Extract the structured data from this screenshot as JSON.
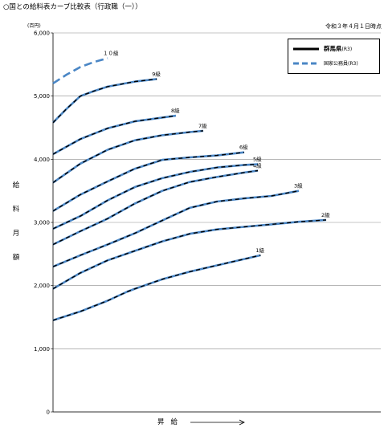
{
  "page": {
    "title": "○国との給料表カーブ比較表（行政職（一））",
    "date_note": "令和３年４月１日時点",
    "ylabel_chars": [
      "給",
      "料",
      "月",
      "額"
    ],
    "xlabel": "昇給"
  },
  "chart_data": {
    "type": "line",
    "title": "○国との給料表カーブ比較表（行政職（一））",
    "unit_label": "(百円)",
    "ylabel": "給料月額",
    "xlabel": "昇給",
    "ylim": [
      0,
      6000
    ],
    "yticks": [
      0,
      1000,
      2000,
      3000,
      4000,
      5000,
      6000
    ],
    "ytick_labels": [
      "0",
      "1,000",
      "2,000",
      "3,000",
      "4,000",
      "5,000",
      "6,000"
    ],
    "grid": true,
    "legend_position": "top-right",
    "legend": [
      {
        "name": "群馬県(R3)",
        "style": "solid",
        "color": "#000000"
      },
      {
        "name": "国家公務員(R3)",
        "style": "dashed",
        "color": "#4a86c5"
      }
    ],
    "colors": {
      "prefecture": "#000000",
      "national": "#4a86c5"
    },
    "x_unit": "号給 (approximate progression index 0-100)",
    "series": [
      {
        "name": "1級",
        "label": "1級",
        "x": [
          0,
          10,
          20,
          27,
          30,
          40,
          50,
          60,
          70,
          76
        ],
        "values": [
          1450,
          1590,
          1760,
          1900,
          1950,
          2100,
          2220,
          2320,
          2420,
          2480
        ]
      },
      {
        "name": "2級",
        "label": "2級",
        "x": [
          0,
          10,
          20,
          30,
          40,
          50,
          60,
          70,
          80,
          90,
          100
        ],
        "values": [
          1950,
          2200,
          2400,
          2550,
          2700,
          2820,
          2890,
          2930,
          2970,
          3010,
          3040
        ]
      },
      {
        "name": "3級",
        "label": "3級",
        "x": [
          0,
          10,
          20,
          30,
          40,
          50,
          60,
          70,
          80,
          90
        ],
        "values": [
          2300,
          2480,
          2650,
          2830,
          3030,
          3230,
          3330,
          3380,
          3420,
          3500
        ]
      },
      {
        "name": "4級",
        "label": "4級",
        "x": [
          0,
          10,
          20,
          30,
          40,
          50,
          60,
          70,
          75
        ],
        "values": [
          2650,
          2860,
          3060,
          3300,
          3500,
          3640,
          3720,
          3790,
          3820
        ]
      },
      {
        "name": "5級",
        "label": "5級",
        "x": [
          0,
          10,
          20,
          30,
          40,
          50,
          60,
          70,
          75
        ],
        "values": [
          2900,
          3100,
          3350,
          3560,
          3700,
          3800,
          3870,
          3910,
          3920
        ]
      },
      {
        "name": "6級",
        "label": "6級",
        "x": [
          0,
          10,
          20,
          30,
          40,
          50,
          60,
          70
        ],
        "values": [
          3180,
          3440,
          3650,
          3850,
          3990,
          4030,
          4060,
          4110
        ]
      },
      {
        "name": "7級",
        "label": "7級",
        "x": [
          0,
          10,
          20,
          30,
          40,
          50,
          55
        ],
        "values": [
          3630,
          3930,
          4150,
          4300,
          4380,
          4430,
          4450
        ]
      },
      {
        "name": "8級",
        "label": "8級",
        "x": [
          0,
          10,
          20,
          30,
          40,
          45
        ],
        "values": [
          4080,
          4320,
          4490,
          4600,
          4660,
          4690
        ]
      },
      {
        "name": "9級",
        "label": "9級",
        "x": [
          0,
          5,
          10,
          15,
          20,
          30,
          38
        ],
        "values": [
          4580,
          4800,
          5000,
          5080,
          5150,
          5230,
          5270
        ]
      },
      {
        "name": "10級",
        "label": "１０級",
        "x": [
          0,
          5,
          10,
          15,
          20
        ],
        "values": [
          5200,
          5340,
          5460,
          5540,
          5600
        ]
      }
    ]
  },
  "legend": {
    "pref_label": "群馬県",
    "pref_suffix": "(R3)",
    "nat_label": "国家公務員(R3)"
  }
}
